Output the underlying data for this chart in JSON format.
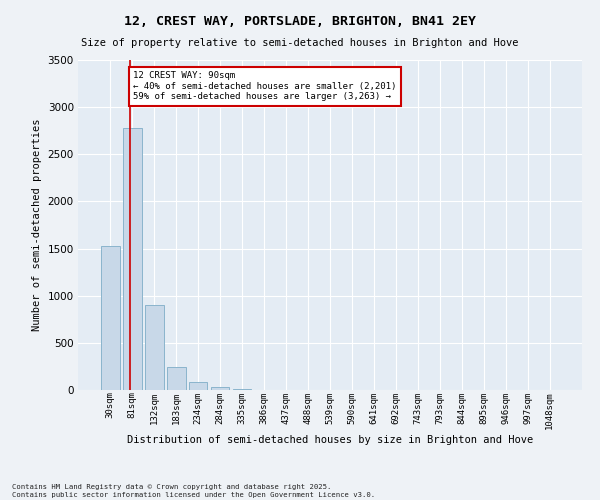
{
  "title": "12, CREST WAY, PORTSLADE, BRIGHTON, BN41 2EY",
  "subtitle": "Size of property relative to semi-detached houses in Brighton and Hove",
  "xlabel": "Distribution of semi-detached houses by size in Brighton and Hove",
  "ylabel": "Number of semi-detached properties",
  "categories": [
    "30sqm",
    "81sqm",
    "132sqm",
    "183sqm",
    "234sqm",
    "284sqm",
    "335sqm",
    "386sqm",
    "437sqm",
    "488sqm",
    "539sqm",
    "590sqm",
    "641sqm",
    "692sqm",
    "743sqm",
    "793sqm",
    "844sqm",
    "895sqm",
    "946sqm",
    "997sqm",
    "1048sqm"
  ],
  "values": [
    1530,
    2780,
    900,
    240,
    90,
    35,
    15,
    5,
    2,
    0,
    0,
    0,
    0,
    0,
    0,
    0,
    0,
    0,
    0,
    0,
    0
  ],
  "bar_color": "#c8d8e8",
  "bar_edge_color": "#8ab4cc",
  "vline_color": "#cc0000",
  "vline_x": 0.92,
  "annotation_line1": "12 CREST WAY: 90sqm",
  "annotation_line2": "← 40% of semi-detached houses are smaller (2,201)",
  "annotation_line3": "59% of semi-detached houses are larger (3,263) →",
  "annotation_box_color": "#cc0000",
  "background_color": "#eef2f6",
  "plot_bg_color": "#e4ecf4",
  "grid_color": "#ffffff",
  "ylim": [
    0,
    3500
  ],
  "yticks": [
    0,
    500,
    1000,
    1500,
    2000,
    2500,
    3000,
    3500
  ],
  "footnote1": "Contains HM Land Registry data © Crown copyright and database right 2025.",
  "footnote2": "Contains public sector information licensed under the Open Government Licence v3.0."
}
